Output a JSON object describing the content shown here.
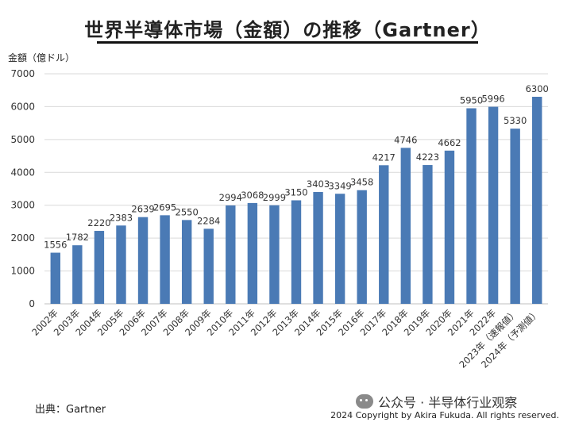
{
  "chart_data": {
    "type": "bar",
    "title": "世界半導体市場（金額）の推移（Gartner）",
    "ylabel": "金額（億ドル）",
    "xlabel": "",
    "ylim": [
      0,
      7000
    ],
    "yticks": [
      0,
      1000,
      2000,
      3000,
      4000,
      5000,
      6000,
      7000
    ],
    "grid": true,
    "bar_color": "#4a7ab5",
    "categories": [
      "2002年",
      "2003年",
      "2004年",
      "2005年",
      "2006年",
      "2007年",
      "2008年",
      "2009年",
      "2010年",
      "2011年",
      "2012年",
      "2013年",
      "2014年",
      "2015年",
      "2016年",
      "2017年",
      "2018年",
      "2019年",
      "2020年",
      "2021年",
      "2022年",
      "2023年（速報値）",
      "2024年（予測値）"
    ],
    "values": [
      1556,
      1782,
      2220,
      2383,
      2639,
      2695,
      2550,
      2284,
      2994,
      3068,
      2999,
      3150,
      3403,
      3349,
      3458,
      4217,
      4746,
      4223,
      4662,
      5950,
      5996,
      5330,
      6300
    ]
  },
  "footer": {
    "source": "出典：Gartner",
    "copyright": "2024 Copyright by Akira Fukuda. All rights reserved.",
    "watermark": "公众号 · 半导体行业观察",
    "watermark_icon": "wechat-icon"
  }
}
